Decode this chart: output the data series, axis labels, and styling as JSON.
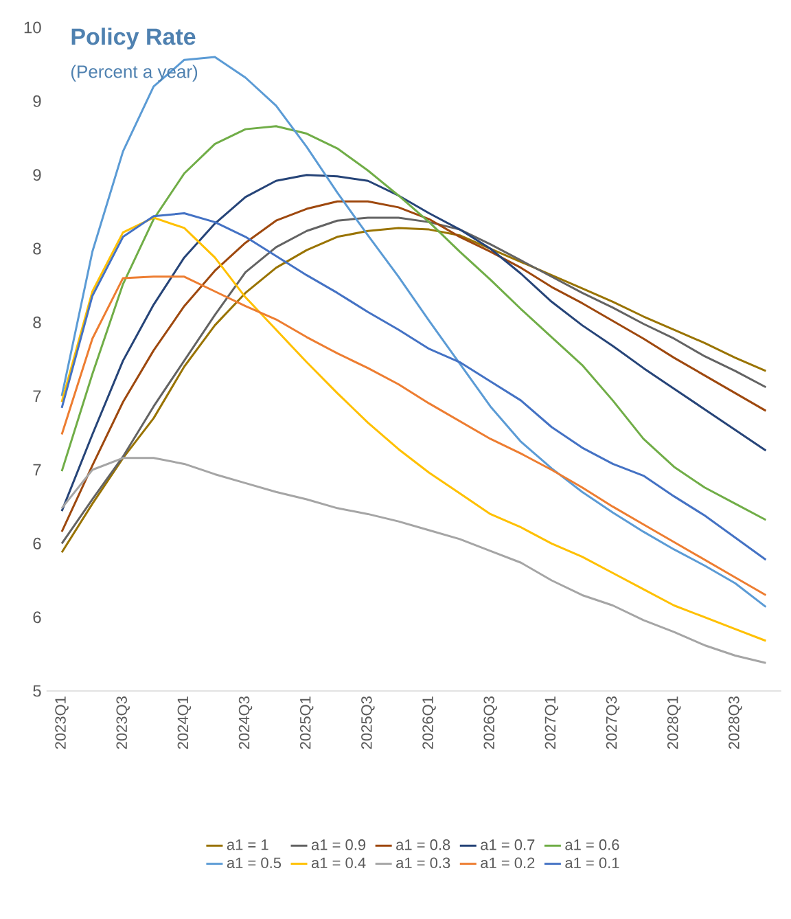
{
  "chart_data": {
    "type": "line",
    "title": "Policy Rate",
    "subtitle": "(Percent a year)",
    "categories": [
      "2023Q1",
      null,
      "2023Q3",
      null,
      "2024Q1",
      null,
      "2024Q3",
      null,
      "2025Q1",
      null,
      "2025Q3",
      null,
      "2026Q1",
      null,
      "2026Q3",
      null,
      "2027Q1",
      null,
      "2027Q3",
      null,
      "2028Q1",
      null,
      "2028Q3",
      null
    ],
    "ylim": [
      5,
      9.5
    ],
    "yticks": [
      5,
      {
        "value": 5.5,
        "label": "6"
      },
      {
        "value": 6,
        "label": "6"
      },
      {
        "value": 6.5,
        "label": "7"
      },
      {
        "value": 7,
        "label": "7"
      },
      {
        "value": 7.5,
        "label": "8"
      },
      {
        "value": 8,
        "label": "8"
      },
      {
        "value": 8.5,
        "label": "9"
      },
      {
        "value": 9,
        "label": "9"
      },
      {
        "value": 9.5,
        "label": "10"
      }
    ],
    "legend": "bottom",
    "marker": "none",
    "line_style": "solid",
    "series": [
      {
        "name": "a1 = 1",
        "color": "#997300",
        "values": [
          5.94,
          6.27,
          6.58,
          6.85,
          7.2,
          7.48,
          7.7,
          7.87,
          7.99,
          8.08,
          8.12,
          8.14,
          8.13,
          8.09,
          8.0,
          7.91,
          7.82,
          7.73,
          7.64,
          7.54,
          7.45,
          7.36,
          7.26,
          7.17
        ]
      },
      {
        "name": "a1 = 0.9",
        "color": "#636363",
        "values": [
          6.0,
          6.3,
          6.59,
          6.93,
          7.24,
          7.55,
          7.84,
          8.01,
          8.12,
          8.19,
          8.21,
          8.21,
          8.18,
          8.13,
          8.03,
          7.92,
          7.81,
          7.7,
          7.6,
          7.49,
          7.39,
          7.27,
          7.17,
          7.06
        ]
      },
      {
        "name": "a1 = 0.8",
        "color": "#9e480e",
        "values": [
          6.08,
          6.53,
          6.96,
          7.31,
          7.61,
          7.85,
          8.04,
          8.19,
          8.27,
          8.32,
          8.32,
          8.28,
          8.2,
          8.08,
          7.98,
          7.87,
          7.74,
          7.63,
          7.51,
          7.39,
          7.26,
          7.14,
          7.02,
          6.9
        ]
      },
      {
        "name": "a1 = 0.7",
        "color": "#264478",
        "values": [
          6.22,
          6.74,
          7.24,
          7.62,
          7.94,
          8.17,
          8.35,
          8.46,
          8.5,
          8.49,
          8.46,
          8.36,
          8.24,
          8.13,
          8.0,
          7.83,
          7.64,
          7.48,
          7.34,
          7.19,
          7.05,
          6.91,
          6.77,
          6.63
        ]
      },
      {
        "name": "a1 = 0.6",
        "color": "#70ad47",
        "values": [
          6.49,
          7.15,
          7.76,
          8.2,
          8.51,
          8.71,
          8.81,
          8.83,
          8.78,
          8.68,
          8.53,
          8.36,
          8.18,
          7.98,
          7.79,
          7.59,
          7.4,
          7.21,
          6.97,
          6.71,
          6.52,
          6.38,
          6.27,
          6.16
        ]
      },
      {
        "name": "a1 = 0.5",
        "color": "#5b9bd5",
        "values": [
          7.0,
          7.98,
          8.66,
          9.1,
          9.28,
          9.3,
          9.16,
          8.97,
          8.69,
          8.38,
          8.09,
          7.81,
          7.51,
          7.22,
          6.93,
          6.69,
          6.51,
          6.35,
          6.21,
          6.08,
          5.96,
          5.85,
          5.73,
          5.57
        ]
      },
      {
        "name": "a1 = 0.4",
        "color": "#ffc000",
        "values": [
          6.96,
          7.71,
          8.11,
          8.21,
          8.14,
          7.94,
          7.67,
          7.45,
          7.23,
          7.02,
          6.82,
          6.64,
          6.48,
          6.34,
          6.2,
          6.11,
          6.0,
          5.91,
          5.8,
          5.69,
          5.58,
          5.5,
          5.42,
          5.34
        ]
      },
      {
        "name": "a1 = 0.3",
        "color": "#a5a5a5",
        "values": [
          6.24,
          6.5,
          6.58,
          6.58,
          6.54,
          6.47,
          6.41,
          6.35,
          6.3,
          6.24,
          6.2,
          6.15,
          6.09,
          6.03,
          5.95,
          5.87,
          5.75,
          5.65,
          5.58,
          5.48,
          5.4,
          5.31,
          5.24,
          5.19
        ]
      },
      {
        "name": "a1 = 0.2",
        "color": "#ed7d31",
        "values": [
          6.74,
          7.39,
          7.8,
          7.81,
          7.81,
          7.71,
          7.61,
          7.52,
          7.4,
          7.29,
          7.19,
          7.08,
          6.95,
          6.83,
          6.71,
          6.61,
          6.5,
          6.38,
          6.25,
          6.13,
          6.01,
          5.89,
          5.77,
          5.65
        ]
      },
      {
        "name": "a1 = 0.1",
        "color": "#4472c4",
        "values": [
          6.92,
          7.68,
          8.08,
          8.22,
          8.24,
          8.18,
          8.08,
          7.95,
          7.82,
          7.7,
          7.57,
          7.45,
          7.32,
          7.23,
          7.1,
          6.97,
          6.79,
          6.65,
          6.54,
          6.46,
          6.32,
          6.19,
          6.04,
          5.89
        ]
      }
    ]
  }
}
